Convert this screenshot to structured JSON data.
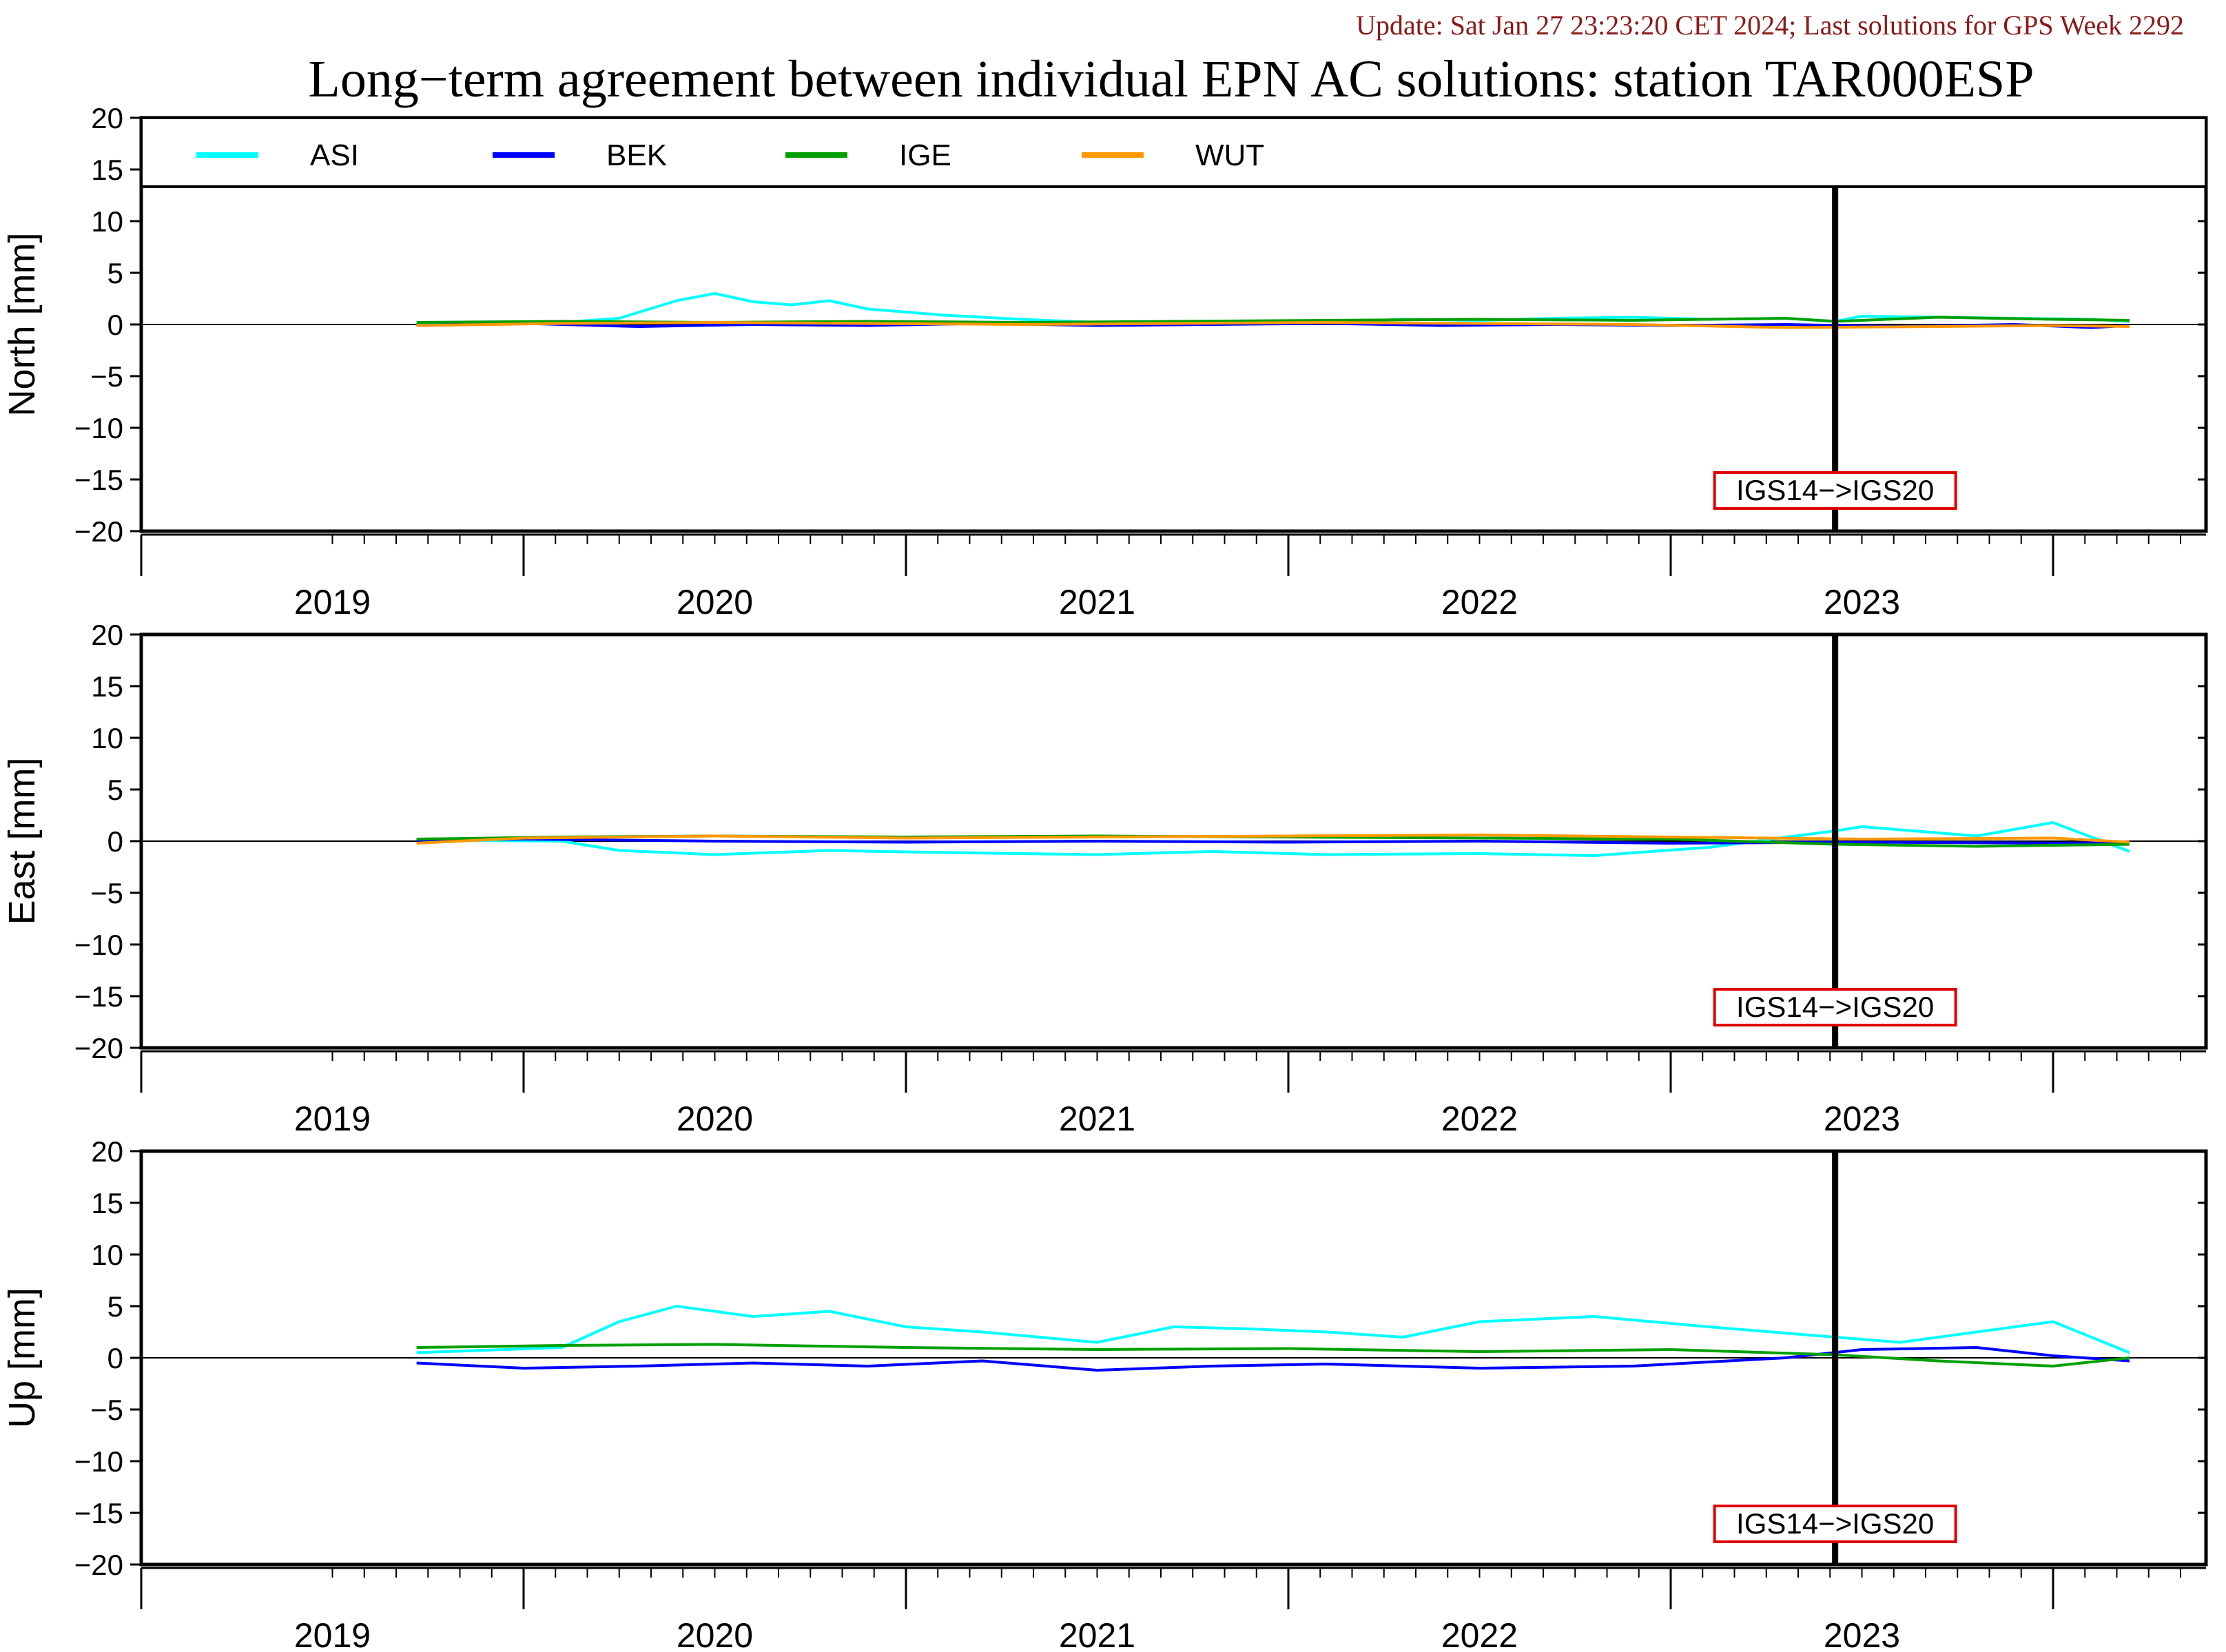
{
  "header": {
    "update_text": "Update: Sat Jan 27 23:23:20 CET 2024; Last solutions for GPS Week 2292",
    "title": "Long−term agreement between individual EPN AC solutions: station TAR000ESP"
  },
  "colors": {
    "ASI": "#00ffff",
    "BEK": "#0000ff",
    "IGE": "#00a000",
    "WUT": "#ff9900",
    "annotation_box": "#e00000",
    "update_text": "#8b1a1a"
  },
  "chart_data": {
    "type": "line",
    "x_range": [
      2018.5,
      2023.9
    ],
    "ylim": [
      -20,
      20
    ],
    "y_ticks": [
      "20",
      "15",
      "10",
      "5",
      "0",
      "−5",
      "−10",
      "−15",
      "−20"
    ],
    "y_tick_values": [
      20,
      15,
      10,
      5,
      0,
      -5,
      -10,
      -15,
      -20
    ],
    "year_labels": [
      "2019",
      "2020",
      "2021",
      "2022",
      "2023"
    ],
    "year_label_positions": [
      2019.0,
      2020.0,
      2021.0,
      2022.0,
      2023.0
    ],
    "legend": [
      "ASI",
      "BEK",
      "IGE",
      "WUT"
    ],
    "frame_change": {
      "label": "IGS14−>IGS20",
      "x": 2022.93
    },
    "panels": [
      {
        "ylabel": "North [mm]",
        "legend_shown": true,
        "series": [
          {
            "name": "ASI",
            "x": [
              2019.22,
              2019.6,
              2019.75,
              2019.9,
              2020.0,
              2020.1,
              2020.2,
              2020.3,
              2020.4,
              2020.5,
              2020.6,
              2020.8,
              2021.0,
              2021.2,
              2021.4,
              2021.6,
              2021.8,
              2022.0,
              2022.2,
              2022.4,
              2022.6,
              2022.8,
              2022.93,
              2023.0,
              2023.2,
              2023.4,
              2023.6,
              2023.7
            ],
            "y": [
              0.1,
              0.2,
              0.6,
              2.3,
              3.0,
              2.2,
              1.9,
              2.3,
              1.5,
              1.2,
              0.9,
              0.5,
              0.2,
              0.3,
              0.3,
              0.2,
              0.5,
              0.4,
              0.6,
              0.7,
              0.5,
              0.6,
              0.3,
              0.8,
              0.7,
              0.6,
              0.5,
              0.3
            ]
          },
          {
            "name": "BEK",
            "x": [
              2019.22,
              2019.5,
              2019.8,
              2020.1,
              2020.4,
              2020.7,
              2021.0,
              2021.3,
              2021.6,
              2021.9,
              2022.2,
              2022.5,
              2022.8,
              2023.1,
              2023.4,
              2023.6,
              2023.7
            ],
            "y": [
              -0.1,
              0.1,
              -0.2,
              0.0,
              -0.1,
              0.1,
              -0.1,
              0.0,
              0.1,
              -0.1,
              0.0,
              -0.1,
              0.0,
              -0.2,
              0.0,
              -0.3,
              -0.1
            ]
          },
          {
            "name": "IGE",
            "x": [
              2019.22,
              2019.6,
              2020.0,
              2020.4,
              2020.8,
              2021.2,
              2021.6,
              2022.0,
              2022.4,
              2022.8,
              2022.93,
              2023.2,
              2023.5,
              2023.7
            ],
            "y": [
              0.2,
              0.3,
              0.2,
              0.3,
              0.2,
              0.3,
              0.4,
              0.5,
              0.4,
              0.6,
              0.3,
              0.7,
              0.5,
              0.4
            ]
          },
          {
            "name": "WUT",
            "x": [
              2019.22,
              2019.6,
              2020.0,
              2020.4,
              2020.8,
              2021.2,
              2021.6,
              2022.0,
              2022.4,
              2022.8,
              2023.2,
              2023.5,
              2023.7
            ],
            "y": [
              -0.1,
              0.1,
              0.2,
              0.1,
              0.0,
              0.1,
              0.2,
              0.1,
              0.0,
              -0.3,
              -0.2,
              -0.1,
              -0.2
            ]
          }
        ]
      },
      {
        "ylabel": "East [mm]",
        "legend_shown": false,
        "series": [
          {
            "name": "ASI",
            "x": [
              2019.22,
              2019.6,
              2019.75,
              2020.0,
              2020.3,
              2020.6,
              2021.0,
              2021.3,
              2021.6,
              2022.0,
              2022.3,
              2022.6,
              2022.93,
              2023.0,
              2023.3,
              2023.5,
              2023.7
            ],
            "y": [
              0.1,
              0.0,
              -0.9,
              -1.3,
              -0.9,
              -1.1,
              -1.3,
              -1.0,
              -1.3,
              -1.2,
              -1.4,
              -0.6,
              1.0,
              1.4,
              0.5,
              1.8,
              -1.0
            ]
          },
          {
            "name": "BEK",
            "x": [
              2019.22,
              2019.5,
              2020.0,
              2020.5,
              2021.0,
              2021.5,
              2022.0,
              2022.5,
              2023.0,
              2023.5,
              2023.7
            ],
            "y": [
              0.1,
              0.2,
              0.0,
              -0.1,
              0.0,
              -0.1,
              0.0,
              -0.2,
              -0.1,
              -0.2,
              -0.1
            ]
          },
          {
            "name": "IGE",
            "x": [
              2019.22,
              2019.6,
              2020.0,
              2020.5,
              2021.0,
              2021.5,
              2022.0,
              2022.5,
              2022.93,
              2023.3,
              2023.7
            ],
            "y": [
              0.2,
              0.4,
              0.5,
              0.4,
              0.5,
              0.4,
              0.3,
              0.2,
              -0.3,
              -0.5,
              -0.3
            ]
          },
          {
            "name": "WUT",
            "x": [
              2019.22,
              2019.5,
              2020.0,
              2020.5,
              2021.0,
              2021.5,
              2022.0,
              2022.5,
              2023.0,
              2023.5,
              2023.7
            ],
            "y": [
              -0.2,
              0.3,
              0.5,
              0.3,
              0.4,
              0.5,
              0.6,
              0.4,
              0.2,
              0.3,
              -0.1
            ]
          }
        ]
      },
      {
        "ylabel": "Up [mm]",
        "legend_shown": false,
        "series": [
          {
            "name": "ASI",
            "x": [
              2019.22,
              2019.6,
              2019.75,
              2019.9,
              2020.1,
              2020.3,
              2020.5,
              2020.7,
              2021.0,
              2021.2,
              2021.4,
              2021.6,
              2021.8,
              2022.0,
              2022.3,
              2022.6,
              2022.93,
              2023.1,
              2023.3,
              2023.5,
              2023.7
            ],
            "y": [
              0.5,
              1.0,
              3.5,
              5.0,
              4.0,
              4.5,
              3.0,
              2.5,
              1.5,
              3.0,
              2.8,
              2.5,
              2.0,
              3.5,
              4.0,
              3.0,
              2.0,
              1.5,
              2.5,
              3.5,
              0.5
            ]
          },
          {
            "name": "BEK",
            "x": [
              2019.22,
              2019.5,
              2019.8,
              2020.1,
              2020.4,
              2020.7,
              2021.0,
              2021.3,
              2021.6,
              2022.0,
              2022.4,
              2022.8,
              2023.0,
              2023.3,
              2023.5,
              2023.7
            ],
            "y": [
              -0.5,
              -1.0,
              -0.8,
              -0.5,
              -0.8,
              -0.3,
              -1.2,
              -0.8,
              -0.6,
              -1.0,
              -0.8,
              0.0,
              0.8,
              1.0,
              0.2,
              -0.3
            ]
          },
          {
            "name": "IGE",
            "x": [
              2019.22,
              2019.6,
              2020.0,
              2020.5,
              2021.0,
              2021.5,
              2022.0,
              2022.5,
              2022.93,
              2023.2,
              2023.5,
              2023.7
            ],
            "y": [
              1.0,
              1.2,
              1.3,
              1.0,
              0.8,
              0.9,
              0.6,
              0.8,
              0.3,
              -0.3,
              -0.8,
              0.0
            ]
          }
        ]
      }
    ]
  }
}
